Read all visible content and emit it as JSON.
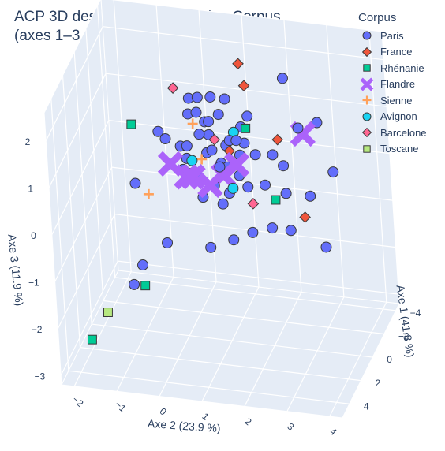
{
  "chart_data": {
    "type": "scatter",
    "dimensions": 3,
    "title": [
      "ACP 3D des compositions selon Corpus",
      "(axes 1–3 : 77.7% de la variance totale)"
    ],
    "legend_title": "Corpus",
    "legend_position": "top-right",
    "axes": {
      "x": {
        "label": "Axe 2 (23.9 %)",
        "ticks": [
          -2,
          -1,
          0,
          1,
          2,
          3,
          4
        ],
        "range": [
          -2.3,
          4.3
        ]
      },
      "y": {
        "label": "Axe 1 (41.8 %)",
        "ticks": [
          -4,
          -2,
          0,
          2,
          4
        ],
        "range": [
          -4.6,
          5.2
        ]
      },
      "z": {
        "label": "Axe 3 (11.9 %)",
        "ticks": [
          -3,
          -2,
          -1,
          0,
          1,
          2
        ],
        "range": [
          -3.2,
          2.6
        ]
      }
    },
    "grid": true,
    "series": [
      {
        "name": "Paris",
        "symbol": "circle",
        "color": "#636efa",
        "points": [
          [
            0.1,
            0.2,
            0.9
          ],
          [
            0.3,
            0.5,
            1.0
          ],
          [
            0.5,
            -0.2,
            1.1
          ],
          [
            0.7,
            0.1,
            0.8
          ],
          [
            0.9,
            0.6,
            1.0
          ],
          [
            1.1,
            -0.3,
            0.9
          ],
          [
            1.3,
            0.4,
            1.2
          ],
          [
            0.6,
            -0.5,
            1.3
          ],
          [
            0.8,
            0.2,
            1.5
          ],
          [
            1.0,
            -0.1,
            1.6
          ],
          [
            1.2,
            0.3,
            0.6
          ],
          [
            1.4,
            -0.4,
            0.7
          ],
          [
            0.4,
            0.8,
            0.5
          ],
          [
            0.2,
            -0.6,
            1.4
          ],
          [
            1.6,
            0.1,
            1.1
          ],
          [
            1.8,
            -0.2,
            0.8
          ],
          [
            0.5,
            0.3,
            0.3
          ],
          [
            0.9,
            -0.7,
            0.4
          ],
          [
            1.3,
            0.9,
            0.2
          ],
          [
            1.5,
            0.5,
            0.5
          ],
          [
            0.7,
            1.1,
            0.1
          ],
          [
            1.1,
            0.7,
            -0.1
          ],
          [
            1.7,
            0.6,
            0.3
          ],
          [
            2.0,
            -0.1,
            0.2
          ],
          [
            0.3,
            1.3,
            0.7
          ],
          [
            0.6,
            -1.0,
            0.9
          ],
          [
            1.0,
            1.2,
            0.4
          ],
          [
            1.4,
            -0.8,
            1.2
          ],
          [
            0.8,
            -0.3,
            1.9
          ],
          [
            1.2,
            0.1,
            2.0
          ],
          [
            0.4,
            -0.9,
            1.7
          ],
          [
            1.6,
            -0.6,
            1.5
          ],
          [
            2.3,
            0.4,
            1.0
          ],
          [
            2.6,
            0.8,
            0.9
          ],
          [
            2.8,
            -0.5,
            1.4
          ],
          [
            3.1,
            -1.5,
            1.3
          ],
          [
            3.3,
            1.5,
            0.5
          ],
          [
            3.6,
            -0.3,
            0.6
          ],
          [
            2.4,
            1.8,
            -0.2
          ],
          [
            2.9,
            2.2,
            -0.1
          ],
          [
            1.9,
            1.6,
            -0.4
          ],
          [
            1.5,
            2.0,
            -0.5
          ],
          [
            0.9,
            1.7,
            -0.8
          ],
          [
            0.2,
            0.0,
            0.6
          ],
          [
            -0.2,
            0.5,
            1.1
          ],
          [
            -0.5,
            -0.4,
            1.0
          ],
          [
            -0.9,
            1.0,
            0.2
          ],
          [
            0.0,
            2.5,
            -0.6
          ],
          [
            -1.0,
            0.0,
            -1.8
          ],
          [
            -0.8,
            2.8,
            -1.5
          ],
          [
            1.8,
            2.6,
            1.8
          ],
          [
            2.2,
            -2.5,
            1.9
          ],
          [
            3.4,
            0.2,
            -0.9
          ],
          [
            0.1,
            -1.5,
            1.5
          ],
          [
            1.2,
            1.5,
            0.9
          ],
          [
            0.6,
            0.7,
            1.8
          ],
          [
            2.5,
            0.0,
            0.1
          ]
        ]
      },
      {
        "name": "France",
        "symbol": "diamond",
        "color": "#ef553b",
        "points": [
          [
            1.4,
            -1.0,
            2.5
          ],
          [
            1.6,
            -0.4,
            2.2
          ],
          [
            1.3,
            0.5,
            1.0
          ],
          [
            2.3,
            -0.5,
            1.1
          ],
          [
            3.3,
            2.5,
            0.3
          ]
        ]
      },
      {
        "name": "Rhénanie",
        "symbol": "square",
        "color": "#00cc96",
        "points": [
          [
            -1.0,
            0.4,
            1.3
          ],
          [
            1.7,
            0.4,
            1.5
          ],
          [
            2.4,
            1.0,
            0.2
          ],
          [
            -0.6,
            2.4,
            -1.6
          ],
          [
            -2.0,
            2.0,
            -3.0
          ]
        ]
      },
      {
        "name": "Flandre",
        "symbol": "x",
        "color": "#ab63fa",
        "points": [
          [
            -0.1,
            0.6,
            0.6
          ],
          [
            0.4,
            1.5,
            0.6
          ],
          [
            0.6,
            1.8,
            0.7
          ],
          [
            0.9,
            1.2,
            0.4
          ],
          [
            1.2,
            1.0,
            0.6
          ],
          [
            1.5,
            0.8,
            0.8
          ],
          [
            2.8,
            -1.2,
            1.1
          ]
        ]
      },
      {
        "name": "Sienne",
        "symbol": "cross",
        "color": "#ffa15a",
        "points": [
          [
            -0.6,
            1.0,
            0.0
          ],
          [
            0.3,
            -0.6,
            1.2
          ],
          [
            0.6,
            0.3,
            0.7
          ]
        ]
      },
      {
        "name": "Avignon",
        "symbol": "circle",
        "color": "#19d3f3",
        "points": [
          [
            0.4,
            0.5,
            0.7
          ],
          [
            1.5,
            1.6,
            0.5
          ],
          [
            1.3,
            -0.3,
            1.2
          ]
        ]
      },
      {
        "name": "Barcelone",
        "symbol": "diamond",
        "color": "#ff6692",
        "points": [
          [
            -0.3,
            -1.8,
            1.6
          ],
          [
            2.0,
            1.9,
            0.3
          ],
          [
            0.9,
            0.1,
            1.1
          ]
        ]
      },
      {
        "name": "Toscane",
        "symbol": "square",
        "color": "#b6e880",
        "points": [
          [
            -1.6,
            1.9,
            -2.4
          ]
        ]
      }
    ]
  }
}
